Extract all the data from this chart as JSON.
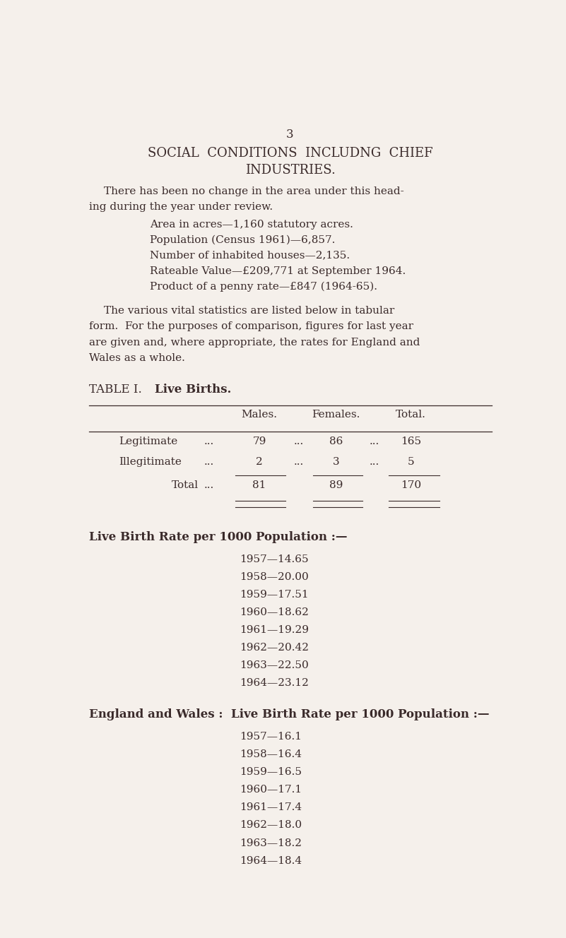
{
  "bg_color": "#f5f0eb",
  "text_color": "#3a2a2a",
  "page_number": "3",
  "title_line1": "SOCIAL  CONDITIONS  INCLUDNG  CHIEF",
  "title_line2": "INDUSTRIES.",
  "para1_line1": "There has been no change in the area under this head-",
  "para1_line2": "ing during the year under review.",
  "bullets": [
    "Area in acres—1,160 statutory acres.",
    "Population (Census 1961)—6,857.",
    "Number of inhabited houses—2,135.",
    "Rateable Value—£209,771 at September 1964.",
    "Product of a penny rate—£847 (1964-65)."
  ],
  "para2_lines": [
    "The various vital statistics are listed below in tabular",
    "form.  For the purposes of comparison, figures for last year",
    "are given and, where appropriate, the rates for England and",
    "Wales as a whole."
  ],
  "table_label": "TABLE I.",
  "table_title": "Live Births.",
  "table_headers": [
    "Males.",
    "Females.",
    "Total."
  ],
  "table_rows": [
    [
      "Legitimate",
      "...",
      "79",
      "...",
      "86",
      "...",
      "165"
    ],
    [
      "Illegitimate",
      "...",
      "2",
      "...",
      "3",
      "...",
      "5"
    ]
  ],
  "table_total_label": "Total",
  "table_total_vals": [
    "81",
    "89",
    "170"
  ],
  "section1_title": "Live Birth Rate per 1000 Population :—",
  "section1_rates": [
    "1957—14.65",
    "1958—20.00",
    "1959—17.51",
    "1960—18.62",
    "1961—19.29",
    "1962—20.42",
    "1963—22.50",
    "1964—23.12"
  ],
  "section2_title": "England and Wales :  Live Birth Rate per 1000 Population :—",
  "section2_rates": [
    "1957—16.1",
    "1958—16.4",
    "1959—16.5",
    "1960—17.1",
    "1961—17.4",
    "1962—18.0",
    "1963—18.2",
    "1964—18.4"
  ]
}
